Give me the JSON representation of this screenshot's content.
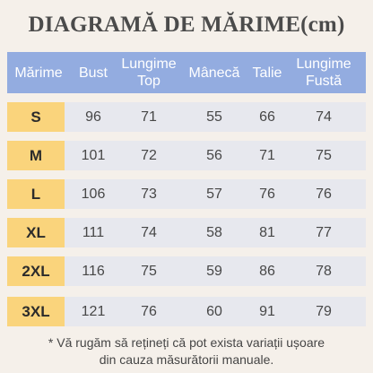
{
  "title": "DIAGRAMĂ DE MĂRIME(cm)",
  "table": {
    "headers": [
      {
        "line1": "Mărime",
        "line2": ""
      },
      {
        "line1": "Bust",
        "line2": ""
      },
      {
        "line1": "Lungime",
        "line2": "Top"
      },
      {
        "line1": "Mânecă",
        "line2": ""
      },
      {
        "line1": "Talie",
        "line2": ""
      },
      {
        "line1": "Lungime",
        "line2": "Fustă"
      }
    ],
    "rows": [
      {
        "size": "S",
        "bust": "96",
        "top_length": "71",
        "sleeve": "55",
        "waist": "66",
        "skirt_length": "74"
      },
      {
        "size": "M",
        "bust": "101",
        "top_length": "72",
        "sleeve": "56",
        "waist": "71",
        "skirt_length": "75"
      },
      {
        "size": "L",
        "bust": "106",
        "top_length": "73",
        "sleeve": "57",
        "waist": "76",
        "skirt_length": "76"
      },
      {
        "size": "XL",
        "bust": "111",
        "top_length": "74",
        "sleeve": "58",
        "waist": "81",
        "skirt_length": "77"
      },
      {
        "size": "2XL",
        "bust": "116",
        "top_length": "75",
        "sleeve": "59",
        "waist": "86",
        "skirt_length": "78"
      },
      {
        "size": "3XL",
        "bust": "121",
        "top_length": "76",
        "sleeve": "60",
        "waist": "91",
        "skirt_length": "79"
      }
    ]
  },
  "note": {
    "line1": "* Vă rugăm să rețineți că pot exista variații ușoare",
    "line2": "din cauza măsurătorii manuale."
  },
  "colors": {
    "background": "#f5f0ea",
    "header": "#93ace0",
    "row": "#e7e8ee",
    "size_tag": "#fad47c"
  }
}
